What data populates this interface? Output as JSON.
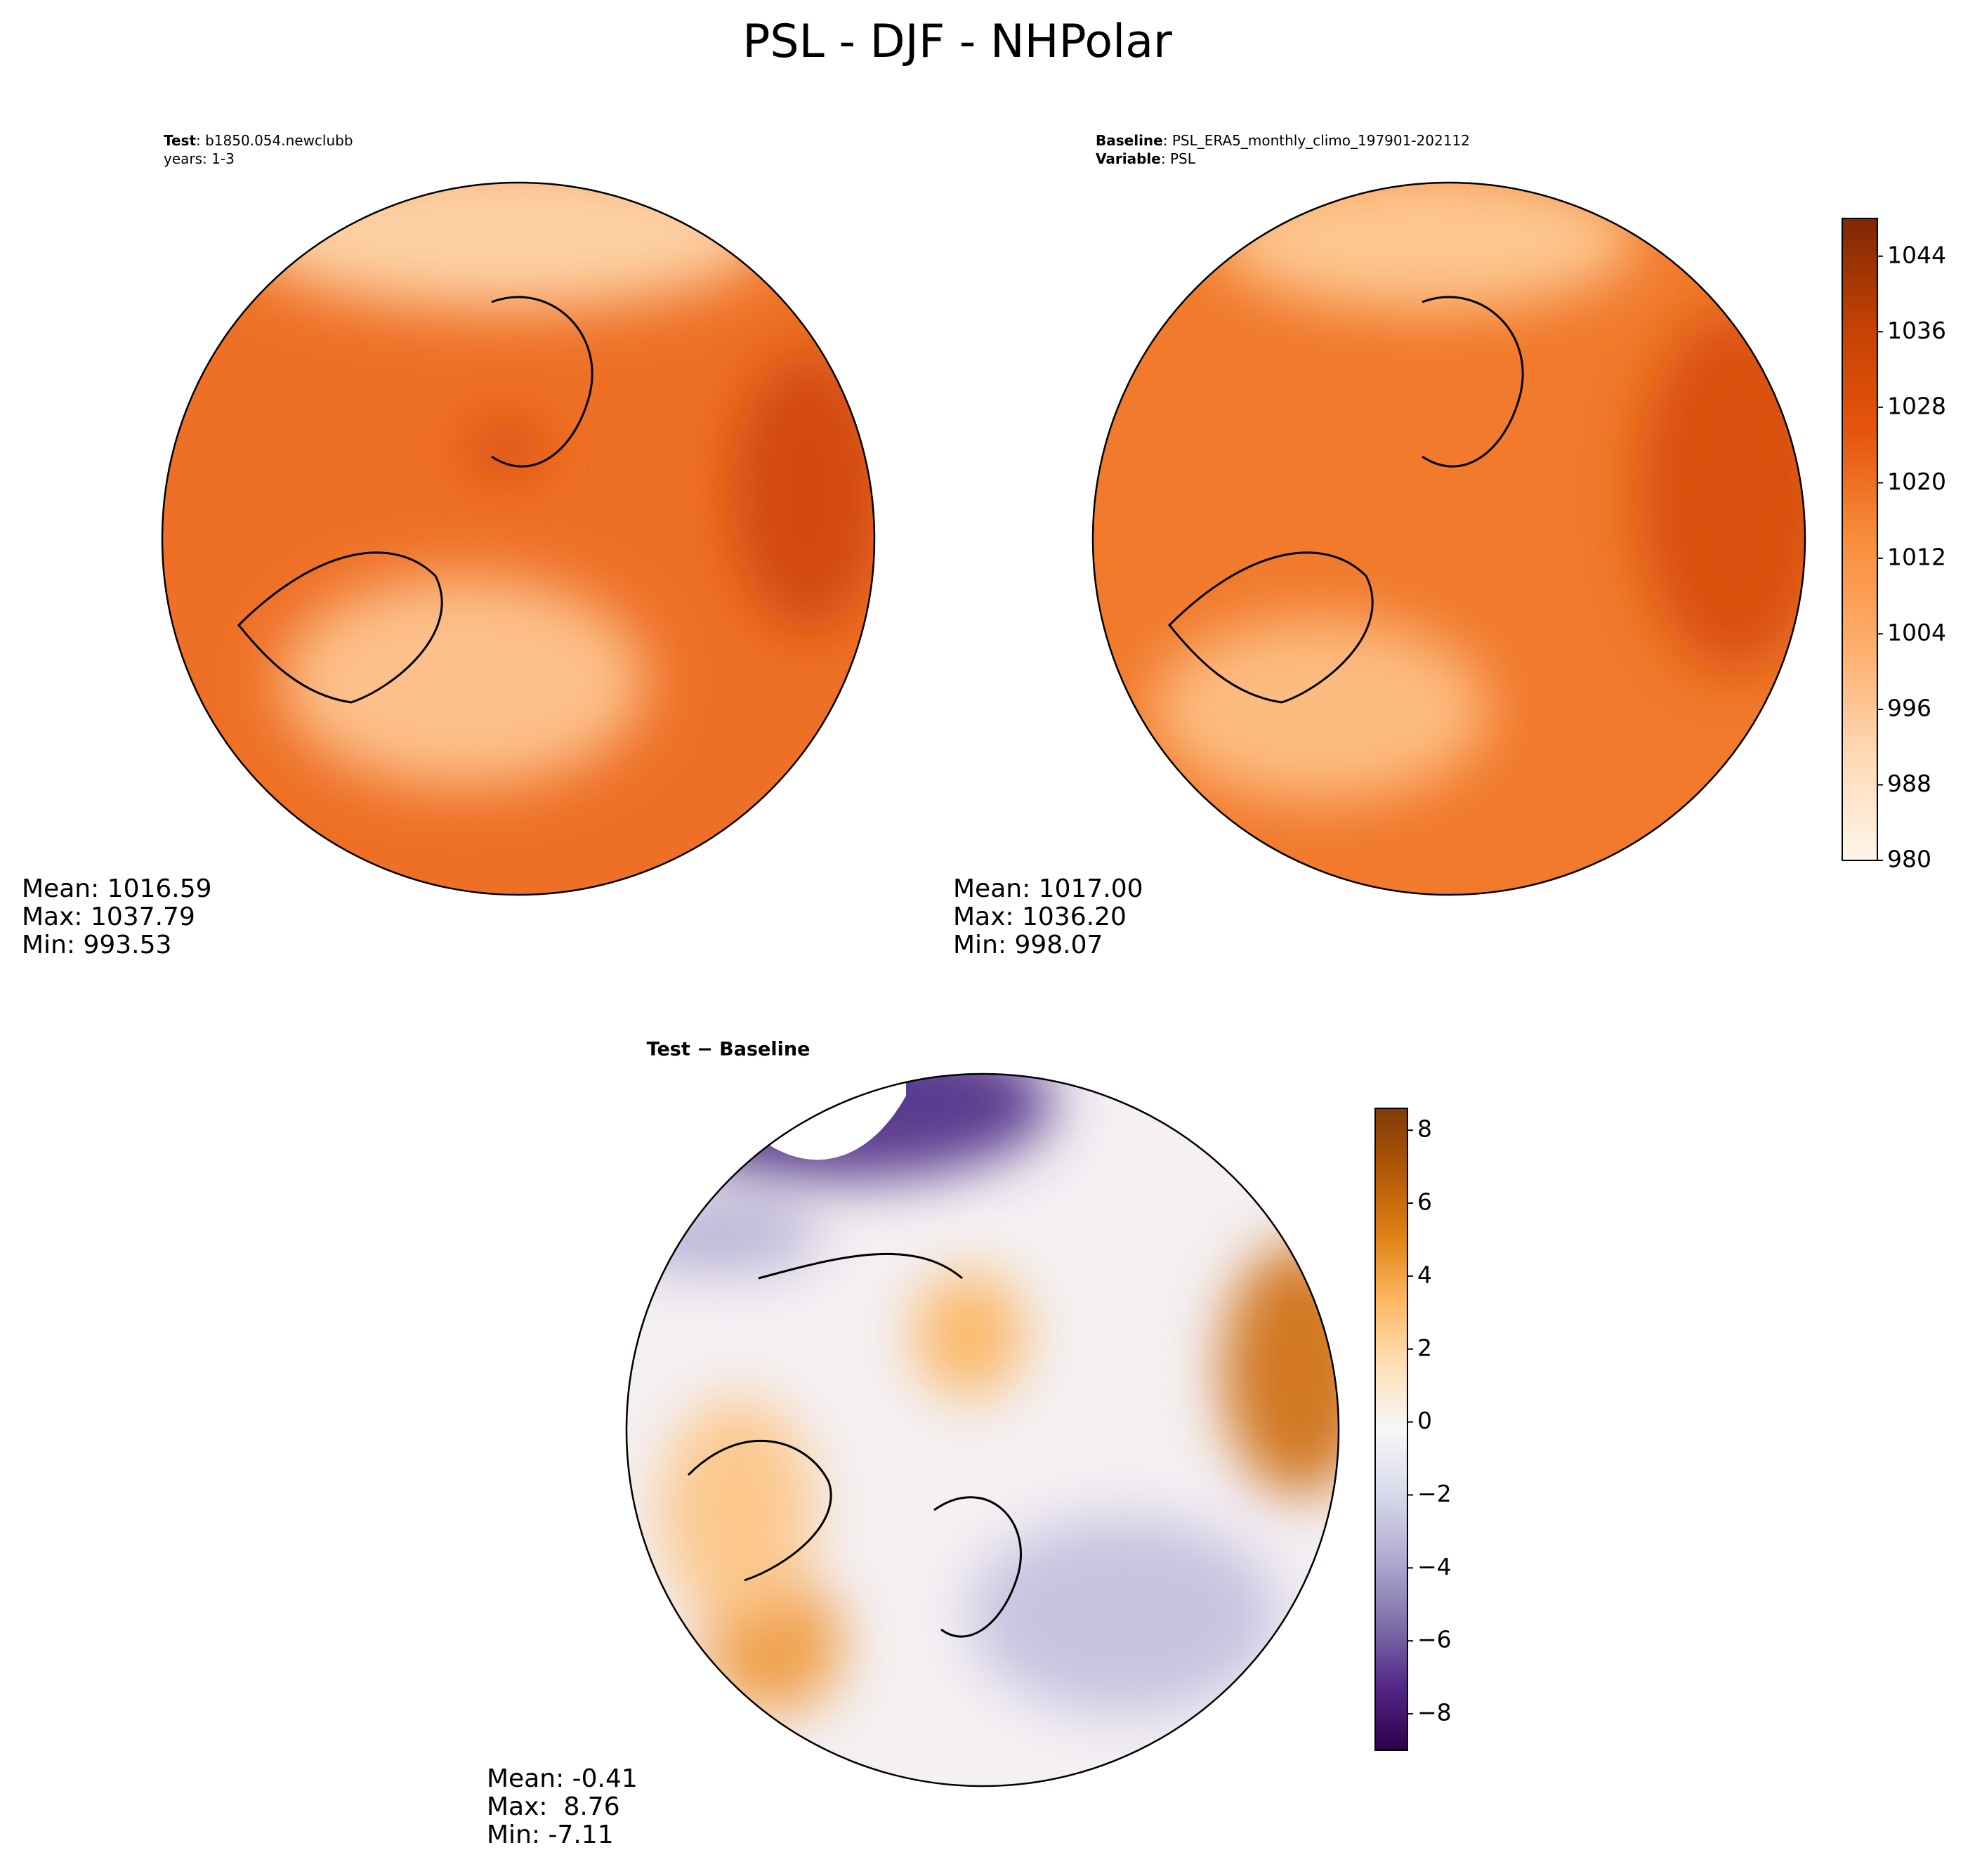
{
  "title": "PSL - DJF - NHPolar",
  "panels": [
    {
      "header": [
        {
          "key": "Test",
          "value": ": b1850.054.newclubb"
        },
        {
          "value": "years: 1-3"
        }
      ],
      "stats": [
        "Mean: 1016.59",
        "Max: 1037.79",
        "Min: 993.53"
      ]
    },
    {
      "header": [
        {
          "key": "Baseline",
          "value": ": PSL_ERA5_monthly_climo_197901-202112"
        },
        {
          "key": "Variable",
          "value": ": PSL"
        }
      ],
      "stats": [
        "Mean: 1017.00",
        "Max: 1036.20",
        "Min: 998.07"
      ]
    },
    {
      "title": "Test − Baseline",
      "stats": [
        "Mean: -0.41",
        "Max:  8.76",
        "Min: -7.11"
      ]
    }
  ],
  "colorbars": [
    {
      "lim": [
        980,
        1048
      ],
      "ticks": [
        980,
        988,
        996,
        1004,
        1012,
        1020,
        1028,
        1036,
        1044
      ],
      "colors": [
        "#fff5eb",
        "#fdd9b4",
        "#fdae6b",
        "#f98d3c",
        "#e6550d",
        "#c44103",
        "#7f2704"
      ]
    },
    {
      "lim": [
        -9,
        8.6
      ],
      "ticks": [
        {
          "value": -8,
          "label": "−8"
        },
        {
          "value": -6,
          "label": "−6"
        },
        {
          "value": -4,
          "label": "−4"
        },
        {
          "value": -2,
          "label": "−2"
        },
        0,
        2,
        4,
        6,
        8
      ],
      "colors": [
        "#2d004b",
        "#542788",
        "#8073ac",
        "#b2abd2",
        "#d8daeb",
        "#f7f7f7",
        "#fee0b6",
        "#fdb863",
        "#e08214",
        "#b35806",
        "#7f3b08"
      ]
    }
  ]
}
